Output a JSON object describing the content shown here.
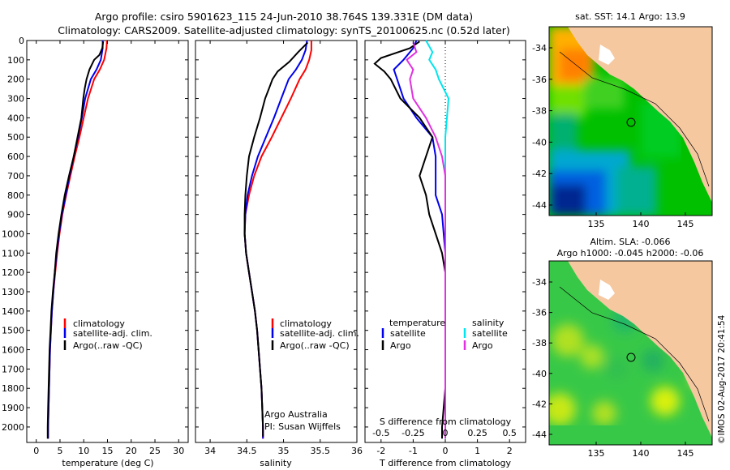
{
  "header": {
    "line1": "Argo profile: csiro 5901623_115 24-Jun-2010 38.764S 139.331E (DM data)",
    "line2": "Climatology: CARS2009. Satellite-adjusted climatology: synTS_20100625.nc (0.52d later)"
  },
  "colors": {
    "climatology": "#ff0000",
    "satellite_adj": "#0000ee",
    "argo": "#000000",
    "satellite_s": "#00e5ee",
    "argo_s": "#e032e0",
    "land": "#f5c8a0"
  },
  "chart_data": [
    {
      "type": "line",
      "id": "temperature",
      "xlabel": "temperature (deg C)",
      "xlim": [
        -2,
        32
      ],
      "ylim": [
        0,
        2080
      ],
      "x_ticks": [
        0,
        5,
        10,
        15,
        20,
        25,
        30
      ],
      "y_ticks": [
        0,
        100,
        200,
        300,
        400,
        500,
        600,
        700,
        800,
        900,
        1000,
        1100,
        1200,
        1300,
        1400,
        1500,
        1600,
        1700,
        1800,
        1900,
        2000
      ],
      "legend": [
        "climatology",
        "satellite-adj. clim.",
        "Argo(..raw -QC)"
      ],
      "series": [
        {
          "name": "climatology",
          "color": "#ff0000",
          "points": [
            [
              14.9,
              0
            ],
            [
              14.8,
              40
            ],
            [
              14.3,
              100
            ],
            [
              13.4,
              150
            ],
            [
              12.2,
              200
            ],
            [
              10.9,
              300
            ],
            [
              10.0,
              400
            ],
            [
              9.1,
              500
            ],
            [
              8.1,
              600
            ],
            [
              7.2,
              700
            ],
            [
              6.3,
              800
            ],
            [
              5.5,
              900
            ],
            [
              4.9,
              1000
            ],
            [
              4.4,
              1100
            ],
            [
              4.0,
              1200
            ],
            [
              3.6,
              1300
            ],
            [
              3.3,
              1400
            ],
            [
              3.1,
              1500
            ],
            [
              2.9,
              1600
            ],
            [
              2.8,
              1700
            ],
            [
              2.7,
              1800
            ],
            [
              2.6,
              1900
            ],
            [
              2.5,
              2000
            ],
            [
              2.5,
              2060
            ]
          ]
        },
        {
          "name": "satellite-adj. clim.",
          "color": "#0000ee",
          "points": [
            [
              14.0,
              0
            ],
            [
              14.0,
              40
            ],
            [
              13.6,
              100
            ],
            [
              12.7,
              150
            ],
            [
              11.5,
              200
            ],
            [
              10.3,
              300
            ],
            [
              9.6,
              400
            ],
            [
              8.8,
              500
            ],
            [
              7.9,
              600
            ],
            [
              7.0,
              700
            ],
            [
              6.2,
              800
            ],
            [
              5.4,
              900
            ],
            [
              4.8,
              1000
            ],
            [
              4.3,
              1100
            ],
            [
              3.9,
              1200
            ],
            [
              3.6,
              1300
            ],
            [
              3.3,
              1400
            ],
            [
              3.1,
              1500
            ],
            [
              2.9,
              1600
            ],
            [
              2.8,
              1700
            ],
            [
              2.7,
              1800
            ],
            [
              2.6,
              1900
            ],
            [
              2.5,
              2000
            ],
            [
              2.5,
              2060
            ]
          ]
        },
        {
          "name": "Argo(..raw -QC)",
          "color": "#000000",
          "points": [
            [
              14.1,
              5
            ],
            [
              13.9,
              40
            ],
            [
              13.3,
              75
            ],
            [
              12.2,
              100
            ],
            [
              11.2,
              150
            ],
            [
              10.6,
              200
            ],
            [
              10.2,
              250
            ],
            [
              9.9,
              300
            ],
            [
              9.5,
              400
            ],
            [
              8.7,
              500
            ],
            [
              7.9,
              600
            ],
            [
              6.9,
              700
            ],
            [
              6.0,
              800
            ],
            [
              5.3,
              900
            ],
            [
              4.7,
              1000
            ],
            [
              4.2,
              1100
            ],
            [
              3.9,
              1200
            ],
            [
              3.5,
              1300
            ],
            [
              3.2,
              1400
            ],
            [
              3.0,
              1500
            ],
            [
              2.8,
              1600
            ],
            [
              2.7,
              1700
            ],
            [
              2.6,
              1800
            ],
            [
              2.5,
              1900
            ],
            [
              2.4,
              2000
            ],
            [
              2.4,
              2060
            ]
          ]
        }
      ]
    },
    {
      "type": "line",
      "id": "salinity",
      "xlabel": "salinity",
      "xlim": [
        33.8,
        36.0
      ],
      "ylim": [
        0,
        2080
      ],
      "x_ticks": [
        34,
        34.5,
        35,
        35.5,
        36
      ],
      "legend": [
        "climatology",
        "satellite-adj. clim.",
        "Argo(..raw -QC)"
      ],
      "annotation": [
        "Argo Australia",
        "PI: Susan Wijffels"
      ],
      "series": [
        {
          "name": "climatology",
          "color": "#ff0000",
          "points": [
            [
              35.38,
              0
            ],
            [
              35.38,
              50
            ],
            [
              35.35,
              100
            ],
            [
              35.3,
              150
            ],
            [
              35.22,
              200
            ],
            [
              35.1,
              300
            ],
            [
              34.97,
              400
            ],
            [
              34.84,
              500
            ],
            [
              34.7,
              600
            ],
            [
              34.6,
              700
            ],
            [
              34.53,
              800
            ],
            [
              34.48,
              900
            ],
            [
              34.47,
              1000
            ],
            [
              34.49,
              1100
            ],
            [
              34.53,
              1200
            ],
            [
              34.57,
              1300
            ],
            [
              34.61,
              1400
            ],
            [
              34.64,
              1500
            ],
            [
              34.66,
              1600
            ],
            [
              34.68,
              1700
            ],
            [
              34.7,
              1800
            ],
            [
              34.71,
              1900
            ],
            [
              34.72,
              2000
            ],
            [
              34.72,
              2060
            ]
          ]
        },
        {
          "name": "satellite-adj. clim.",
          "color": "#0000ee",
          "points": [
            [
              35.32,
              0
            ],
            [
              35.3,
              50
            ],
            [
              35.25,
              100
            ],
            [
              35.17,
              150
            ],
            [
              35.07,
              200
            ],
            [
              34.97,
              300
            ],
            [
              34.87,
              400
            ],
            [
              34.76,
              500
            ],
            [
              34.65,
              600
            ],
            [
              34.57,
              700
            ],
            [
              34.51,
              800
            ],
            [
              34.48,
              900
            ],
            [
              34.47,
              1000
            ],
            [
              34.49,
              1100
            ],
            [
              34.53,
              1200
            ],
            [
              34.57,
              1300
            ],
            [
              34.61,
              1400
            ],
            [
              34.64,
              1500
            ],
            [
              34.66,
              1600
            ],
            [
              34.68,
              1700
            ],
            [
              34.7,
              1800
            ],
            [
              34.71,
              1900
            ],
            [
              34.72,
              2000
            ],
            [
              34.72,
              2060
            ]
          ]
        },
        {
          "name": "Argo(..raw -QC)",
          "color": "#000000",
          "points": [
            [
              35.33,
              10
            ],
            [
              35.2,
              60
            ],
            [
              35.08,
              110
            ],
            [
              34.92,
              160
            ],
            [
              34.85,
              200
            ],
            [
              34.8,
              250
            ],
            [
              34.75,
              300
            ],
            [
              34.68,
              400
            ],
            [
              34.6,
              500
            ],
            [
              34.53,
              600
            ],
            [
              34.5,
              700
            ],
            [
              34.48,
              800
            ],
            [
              34.47,
              900
            ],
            [
              34.47,
              1000
            ],
            [
              34.49,
              1100
            ],
            [
              34.53,
              1200
            ],
            [
              34.57,
              1300
            ],
            [
              34.61,
              1400
            ],
            [
              34.64,
              1500
            ],
            [
              34.66,
              1600
            ],
            [
              34.68,
              1700
            ],
            [
              34.7,
              1800
            ],
            [
              34.71,
              1900
            ],
            [
              34.72,
              2000
            ],
            [
              34.72,
              2050
            ]
          ]
        }
      ]
    },
    {
      "type": "line",
      "id": "differences",
      "xlabel": "T difference from climatology",
      "xlabel_top": "S difference from climatology",
      "xlim": [
        -2.5,
        2.5
      ],
      "ylim": [
        0,
        2080
      ],
      "x_ticks": [
        -2,
        -1,
        0,
        1,
        2
      ],
      "s_ticks": [
        {
          "value": -0.5,
          "label": "-0.5",
          "x": -2.0
        },
        {
          "value": -0.25,
          "label": "-0.25",
          "x": -1.0
        },
        {
          "value": 0,
          "label": "0",
          "x": 0
        },
        {
          "value": 0.25,
          "label": "0.25",
          "x": 1.0
        },
        {
          "value": 0.5,
          "label": "0.5",
          "x": 2.0
        }
      ],
      "legend_t": {
        "title": "temperature",
        "items": [
          "satellite",
          "Argo"
        ]
      },
      "legend_s": {
        "title": "salinity",
        "items": [
          "satellite",
          "Argo"
        ]
      },
      "series": [
        {
          "name": "T satellite",
          "color": "#0000ee",
          "points": [
            [
              -0.9,
              0
            ],
            [
              -1.0,
              40
            ],
            [
              -1.3,
              100
            ],
            [
              -1.6,
              150
            ],
            [
              -1.5,
              200
            ],
            [
              -1.3,
              300
            ],
            [
              -0.9,
              400
            ],
            [
              -0.4,
              500
            ],
            [
              -0.3,
              600
            ],
            [
              -0.3,
              700
            ],
            [
              -0.3,
              800
            ],
            [
              -0.1,
              900
            ],
            [
              -0.05,
              1000
            ],
            [
              0,
              1100
            ],
            [
              0,
              1200
            ],
            [
              0,
              1400
            ],
            [
              0,
              1600
            ],
            [
              0,
              1800
            ],
            [
              0,
              2000
            ],
            [
              0,
              2060
            ]
          ]
        },
        {
          "name": "T Argo",
          "color": "#000000",
          "points": [
            [
              -0.8,
              5
            ],
            [
              -1.1,
              40
            ],
            [
              -2.0,
              90
            ],
            [
              -2.2,
              120
            ],
            [
              -1.9,
              160
            ],
            [
              -1.7,
              200
            ],
            [
              -1.4,
              300
            ],
            [
              -0.8,
              400
            ],
            [
              -0.4,
              500
            ],
            [
              -0.6,
              600
            ],
            [
              -0.8,
              700
            ],
            [
              -0.6,
              800
            ],
            [
              -0.5,
              900
            ],
            [
              -0.3,
              1000
            ],
            [
              -0.1,
              1100
            ],
            [
              0,
              1200
            ],
            [
              0,
              1400
            ],
            [
              0,
              1600
            ],
            [
              0,
              1800
            ],
            [
              -0.1,
              2000
            ],
            [
              -0.1,
              2060
            ]
          ]
        },
        {
          "name": "S satellite",
          "color": "#00e5ee",
          "points": [
            [
              -0.6,
              0
            ],
            [
              -0.4,
              60
            ],
            [
              -0.5,
              100
            ],
            [
              -0.3,
              150
            ],
            [
              -0.2,
              200
            ],
            [
              0.1,
              300
            ],
            [
              0.05,
              400
            ],
            [
              0,
              500
            ],
            [
              0,
              700
            ],
            [
              0,
              1000
            ],
            [
              0,
              1400
            ],
            [
              0,
              1800
            ],
            [
              0,
              2060
            ]
          ]
        },
        {
          "name": "S Argo",
          "color": "#e032e0",
          "points": [
            [
              -1.0,
              10
            ],
            [
              -0.9,
              60
            ],
            [
              -1.2,
              100
            ],
            [
              -1.0,
              150
            ],
            [
              -1.1,
              200
            ],
            [
              -1.0,
              300
            ],
            [
              -0.6,
              400
            ],
            [
              -0.3,
              500
            ],
            [
              -0.1,
              600
            ],
            [
              0,
              700
            ],
            [
              0,
              900
            ],
            [
              0,
              1200
            ],
            [
              0,
              1600
            ],
            [
              0,
              2000
            ],
            [
              0,
              2060
            ]
          ]
        }
      ]
    }
  ],
  "map_sst": {
    "title": "sat. SST: 14.1  Argo: 13.9",
    "lon_ticks": [
      "135",
      "140",
      "145"
    ],
    "lat_ticks": [
      "-34",
      "-36",
      "-38",
      "-40",
      "-42",
      "-44"
    ]
  },
  "map_sla": {
    "title_line1": "Altim. SLA: -0.066",
    "title_line2": "Argo h1000: -0.045 h2000: -0.06",
    "lon_ticks": [
      "135",
      "140",
      "145"
    ],
    "lat_ticks": [
      "-34",
      "-36",
      "-38",
      "-40",
      "-42",
      "-44"
    ]
  },
  "credit": "©IMOS 02-Aug-2017 20:41:54"
}
